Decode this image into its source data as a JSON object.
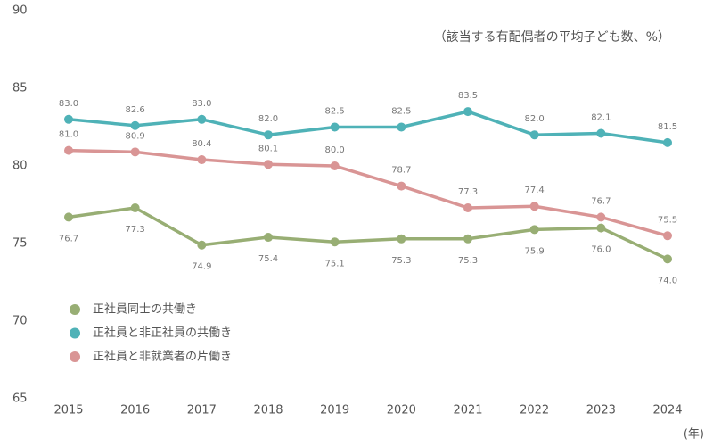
{
  "chart_data": {
    "type": "line",
    "annotation": "（該当する有配偶者の平均子ども数、%）",
    "x_unit": "(年)",
    "categories": [
      "2015",
      "2016",
      "2017",
      "2018",
      "2019",
      "2020",
      "2021",
      "2022",
      "2023",
      "2024"
    ],
    "series": [
      {
        "name": "正社員同士の共働き",
        "color": "#98ae74",
        "values": [
          76.7,
          77.3,
          74.9,
          75.4,
          75.1,
          75.3,
          75.3,
          75.9,
          76,
          74
        ],
        "value_labels": [
          "76.7",
          "77.3",
          "74.9",
          "75.4",
          "75.1",
          "75.3",
          "75.3",
          "75.9",
          "76.0",
          "74.0"
        ]
      },
      {
        "name": "正社員と非正社員の共働き",
        "color": "#4fb2b7",
        "values": [
          83,
          82.6,
          83,
          82,
          82.5,
          82.5,
          83.5,
          82,
          82.1,
          81.5
        ],
        "value_labels": [
          "83.0",
          "82.6",
          "83.0",
          "82.0",
          "82.5",
          "82.5",
          "83.5",
          "82.0",
          "82.1",
          "81.5"
        ]
      },
      {
        "name": "正社員と非就業者の片働き",
        "color": "#d99595",
        "values": [
          81,
          80.9,
          80.4,
          80.1,
          80,
          78.7,
          77.3,
          77.4,
          76.7,
          75.5
        ],
        "value_labels": [
          "81.0",
          "80.9",
          "80.4",
          "80.1",
          "80.0",
          "78.7",
          "77.3",
          "77.4",
          "76.7",
          "75.5"
        ]
      }
    ],
    "ylim": [
      65,
      90
    ],
    "yticks": [
      65,
      70,
      75,
      80,
      85,
      90
    ],
    "grid": false
  }
}
